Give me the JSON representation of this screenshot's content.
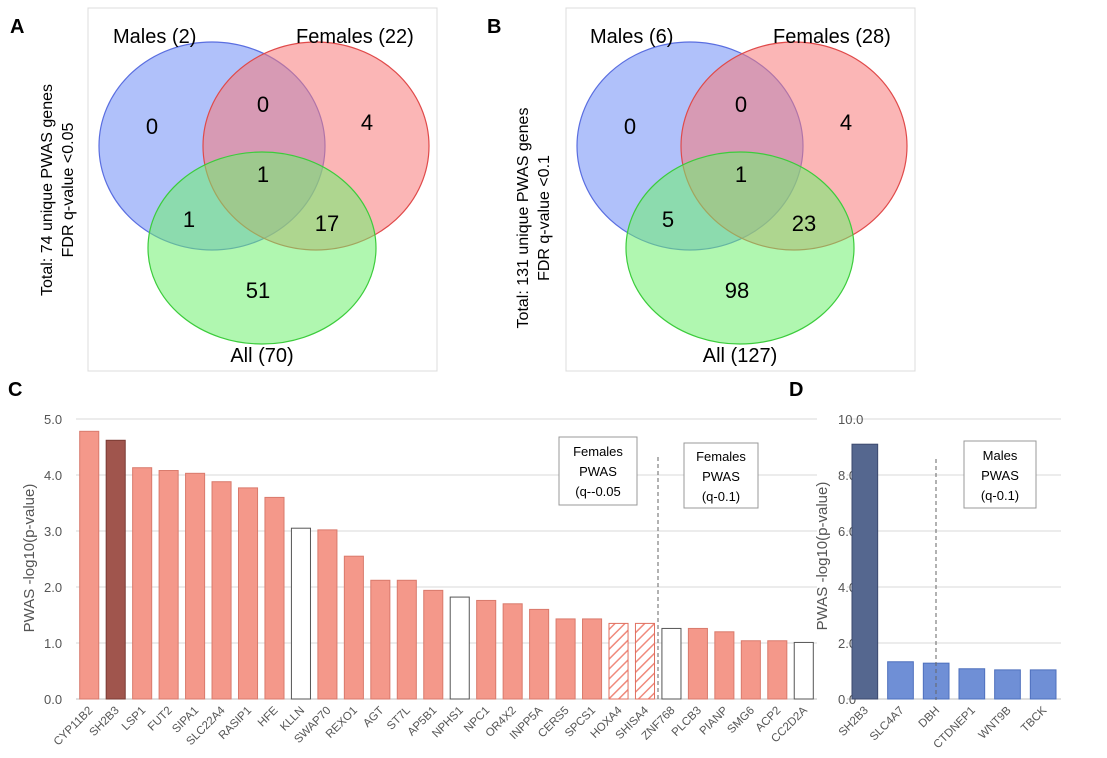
{
  "panels": {
    "A": {
      "letter": "A",
      "side_label_1": "Total: 74 unique PWAS genes",
      "side_label_2": "FDR q-value <0.05",
      "males_label": "Males (2)",
      "females_label": "Females (22)",
      "all_label": "All (70)",
      "regions": {
        "males_only": "0",
        "males_females": "0",
        "females_only": "4",
        "center": "1",
        "males_all": "1",
        "females_all": "17",
        "all_only": "51"
      }
    },
    "B": {
      "letter": "B",
      "side_label_1": "Total: 131 unique PWAS genes",
      "side_label_2": "FDR q-value <0.1",
      "males_label": "Males (6)",
      "females_label": "Females (28)",
      "all_label": "All (127)",
      "regions": {
        "males_only": "0",
        "males_females": "0",
        "females_only": "4",
        "center": "1",
        "males_all": "5",
        "females_all": "23",
        "all_only": "98"
      }
    },
    "C": {
      "letter": "C",
      "box1": [
        "Females",
        "PWAS",
        "(q--0.05"
      ],
      "box2": [
        "Females",
        "PWAS",
        "(q-0.1)"
      ]
    },
    "D": {
      "letter": "D",
      "box": [
        "Males",
        "PWAS",
        "(q-0.1)"
      ]
    }
  },
  "colors": {
    "males_circle": "#6f8ef5",
    "females_circle": "#f77a7a",
    "all_circle": "#6ff06f",
    "bar_salmon": "#f4988a",
    "bar_dark_red": "#a0554d",
    "bar_dark_blue": "#55678f",
    "bar_blue": "#6f8fd6"
  },
  "chart_data": [
    {
      "type": "bar",
      "panel": "C",
      "ylabel": "PWAS -log10(p-value)",
      "ylim": [
        0,
        5
      ],
      "yticks": [
        "0.0",
        "1.0",
        "2.0",
        "3.0",
        "4.0",
        "5.0"
      ],
      "grid": true,
      "categories": [
        "CYP11B2",
        "SH2B3",
        "LSP1",
        "FUT2",
        "SIPA1",
        "SLC22A4",
        "RASIP1",
        "HFE",
        "KLLN",
        "SWAP70",
        "REXO1",
        "AGT",
        "ST7L",
        "AP5B1",
        "NPHS1",
        "NPC1",
        "OR4X2",
        "INPP5A",
        "CERS5",
        "SPCS1",
        "HOXA4",
        "SHISA4",
        "ZNF768",
        "PLCB3",
        "PIANP",
        "SMG6",
        "ACP2",
        "CC2D2A"
      ],
      "values": [
        4.78,
        4.62,
        4.13,
        4.08,
        4.03,
        3.88,
        3.77,
        3.6,
        3.05,
        3.02,
        2.55,
        2.12,
        2.12,
        1.94,
        1.82,
        1.76,
        1.7,
        1.6,
        1.43,
        1.43,
        1.35,
        1.35,
        1.26,
        1.26,
        1.2,
        1.04,
        1.04,
        1.01
      ],
      "styles": [
        "salmon",
        "darkred",
        "salmon",
        "salmon",
        "salmon",
        "salmon",
        "salmon",
        "salmon",
        "white",
        "salmon",
        "salmon",
        "salmon",
        "salmon",
        "salmon",
        "white",
        "salmon",
        "salmon",
        "salmon",
        "salmon",
        "salmon",
        "hatched",
        "hatched",
        "white",
        "salmon",
        "salmon",
        "salmon",
        "salmon",
        "white"
      ]
    },
    {
      "type": "bar",
      "panel": "D",
      "ylabel": "PWAS -log10(p-value)",
      "ylim": [
        0,
        10
      ],
      "yticks": [
        "0.0",
        "2.0",
        "4.0",
        "6.0",
        "8.0",
        "10.0"
      ],
      "grid": true,
      "categories": [
        "SH2B3",
        "SLC4A7",
        "DBH",
        "CTDNEP1",
        "WNT9B",
        "TBCK"
      ],
      "values": [
        9.1,
        1.33,
        1.28,
        1.08,
        1.04,
        1.04
      ],
      "styles": [
        "darkblue",
        "blue",
        "blue",
        "blue",
        "blue",
        "blue"
      ]
    }
  ]
}
